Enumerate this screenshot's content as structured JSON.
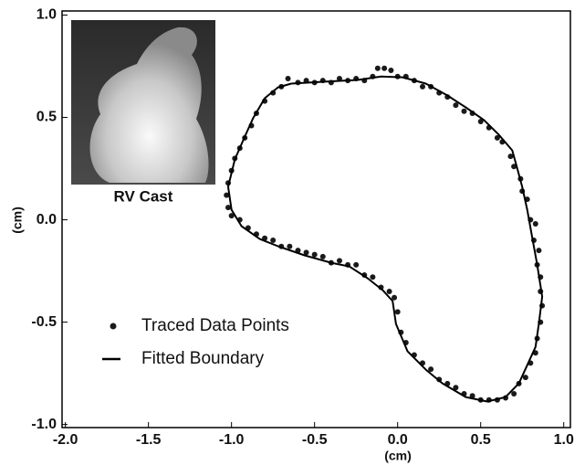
{
  "chart_data": {
    "type": "scatter",
    "xlabel": "(cm)",
    "ylabel": "(cm)",
    "inset_label": "RV Cast",
    "xlim": [
      -2.02,
      1.04
    ],
    "ylim": [
      -1.015,
      1.02
    ],
    "xticks": [
      {
        "value": -2,
        "label": "-2.0"
      },
      -1.5,
      {
        "value": -1,
        "label": "-1.0"
      },
      -0.5,
      {
        "value": 0,
        "label": "0.0"
      },
      0.5,
      {
        "value": 1,
        "label": "1.0"
      }
    ],
    "yticks": [
      {
        "value": 1,
        "label": "1.0"
      },
      0.5,
      {
        "value": 0,
        "label": "0.0"
      },
      -0.5,
      {
        "value": -1,
        "label": "-1.0"
      }
    ],
    "series": [
      {
        "name": "Traced Data Points",
        "type": "scatter",
        "color": "#1a1a1a",
        "x": [
          -0.66,
          -0.6,
          -0.55,
          -0.5,
          -0.45,
          -0.4,
          -0.35,
          -0.3,
          -0.25,
          -0.2,
          -0.15,
          -0.12,
          -0.08,
          -0.04,
          0.0,
          0.05,
          0.1,
          0.15,
          0.2,
          0.25,
          0.3,
          0.35,
          0.4,
          0.45,
          0.5,
          0.55,
          0.6,
          0.63,
          0.68,
          0.7,
          0.74,
          0.75,
          0.78,
          0.8,
          0.83,
          0.82,
          0.85,
          0.84,
          0.86,
          0.86,
          0.87,
          0.86,
          0.84,
          0.83,
          0.8,
          0.77,
          0.73,
          0.7,
          0.65,
          0.6,
          0.55,
          0.5,
          0.45,
          0.4,
          0.35,
          0.3,
          0.25,
          0.2,
          0.15,
          0.1,
          0.05,
          0.02,
          0.0,
          -0.02,
          -0.05,
          -0.1,
          -0.15,
          -0.2,
          -0.25,
          -0.3,
          -0.35,
          -0.4,
          -0.45,
          -0.5,
          -0.55,
          -0.6,
          -0.65,
          -0.7,
          -0.75,
          -0.8,
          -0.85,
          -0.9,
          -0.95,
          -1.0,
          -1.02,
          -1.03,
          -1.02,
          -1.0,
          -0.98,
          -0.95,
          -0.92,
          -0.88,
          -0.85,
          -0.8,
          -0.75,
          -0.7
        ],
        "values": [
          0.69,
          0.67,
          0.68,
          0.67,
          0.68,
          0.67,
          0.69,
          0.68,
          0.69,
          0.68,
          0.7,
          0.74,
          0.74,
          0.73,
          0.7,
          0.7,
          0.68,
          0.65,
          0.65,
          0.62,
          0.6,
          0.56,
          0.53,
          0.52,
          0.48,
          0.45,
          0.4,
          0.38,
          0.31,
          0.26,
          0.2,
          0.14,
          0.1,
          0.0,
          -0.02,
          -0.1,
          -0.15,
          -0.22,
          -0.28,
          -0.35,
          -0.42,
          -0.5,
          -0.58,
          -0.65,
          -0.7,
          -0.77,
          -0.8,
          -0.85,
          -0.87,
          -0.88,
          -0.88,
          -0.88,
          -0.86,
          -0.85,
          -0.82,
          -0.8,
          -0.78,
          -0.73,
          -0.7,
          -0.66,
          -0.6,
          -0.55,
          -0.45,
          -0.38,
          -0.35,
          -0.33,
          -0.28,
          -0.27,
          -0.22,
          -0.22,
          -0.2,
          -0.21,
          -0.18,
          -0.17,
          -0.16,
          -0.15,
          -0.13,
          -0.13,
          -0.1,
          -0.09,
          -0.07,
          -0.04,
          0.0,
          0.02,
          0.06,
          0.12,
          0.18,
          0.24,
          0.3,
          0.35,
          0.4,
          0.46,
          0.52,
          0.58,
          0.62,
          0.65
        ]
      },
      {
        "name": "Fitted Boundary",
        "type": "line",
        "color": "#000000",
        "x": [
          -0.64,
          -0.45,
          -0.24,
          -0.1,
          0.03,
          0.17,
          0.3,
          0.41,
          0.52,
          0.61,
          0.69,
          0.72,
          0.75,
          0.78,
          0.81,
          0.84,
          0.87,
          0.85,
          0.83,
          0.78,
          0.73,
          0.65,
          0.54,
          0.41,
          0.27,
          0.17,
          0.06,
          -0.01,
          -0.03,
          -0.09,
          -0.18,
          -0.29,
          -0.4,
          -0.56,
          -0.72,
          -0.83,
          -0.94,
          -1.0,
          -1.02,
          -0.98,
          -0.92,
          -0.87,
          -0.8,
          -0.72,
          -0.64
        ],
        "values": [
          0.665,
          0.674,
          0.683,
          0.7,
          0.696,
          0.665,
          0.607,
          0.549,
          0.487,
          0.415,
          0.339,
          0.25,
          0.161,
          0.049,
          -0.085,
          -0.219,
          -0.375,
          -0.509,
          -0.621,
          -0.71,
          -0.799,
          -0.866,
          -0.888,
          -0.866,
          -0.799,
          -0.732,
          -0.643,
          -0.509,
          -0.397,
          -0.344,
          -0.286,
          -0.228,
          -0.21,
          -0.174,
          -0.129,
          -0.094,
          -0.031,
          0.049,
          0.161,
          0.295,
          0.406,
          0.496,
          0.594,
          0.647,
          0.665
        ]
      }
    ]
  }
}
